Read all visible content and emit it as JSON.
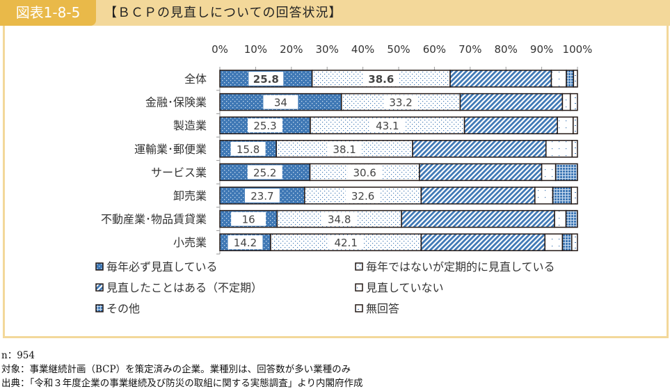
{
  "header": {
    "figure_number": "図表1-8-5",
    "title": "【ＢＣＰの見直しについての回答状況】"
  },
  "colors": {
    "header_bg": "#f3d89a",
    "figure_badge": "#e9b949",
    "bar_blue": "#3f78b5"
  },
  "chart_data": {
    "type": "bar",
    "orientation": "horizontal-stacked-100",
    "title": "【ＢＣＰの見直しについての回答状況】",
    "xlim": [
      0,
      100
    ],
    "x_ticks": [
      "0%",
      "10%",
      "20%",
      "30%",
      "40%",
      "50%",
      "60%",
      "70%",
      "80%",
      "90%",
      "100%"
    ],
    "categories": [
      "全体",
      "金融･保険業",
      "製造業",
      "運輸業･郵便業",
      "サービス業",
      "卸売業",
      "不動産業･物品賃貸業",
      "小売業"
    ],
    "series": [
      {
        "name": "毎年必ず見直している",
        "pattern": "blue-dots",
        "values": [
          25.8,
          34.0,
          25.3,
          15.8,
          25.2,
          23.7,
          16.0,
          14.2
        ],
        "labeled": true
      },
      {
        "name": "毎年ではないが定期的に見直している",
        "pattern": "white-dots",
        "values": [
          38.6,
          33.2,
          43.1,
          38.1,
          30.6,
          32.6,
          34.8,
          42.1
        ],
        "labeled": true
      },
      {
        "name": "見直したことはある（不定期）",
        "pattern": "blue-diagonal",
        "values": [
          28.3,
          28.6,
          26.0,
          37.3,
          34.2,
          31.8,
          42.8,
          34.6
        ]
      },
      {
        "name": "見直していない",
        "pattern": "white-sparse",
        "values": [
          4.2,
          2.2,
          4.4,
          7.3,
          3.9,
          5.0,
          3.2,
          4.9
        ]
      },
      {
        "name": "その他",
        "pattern": "blue-grid",
        "values": [
          2.0,
          0,
          0,
          0,
          6.1,
          5.2,
          3.2,
          2.6
        ]
      },
      {
        "name": "無回答",
        "pattern": "white-dash",
        "values": [
          1.1,
          2.0,
          1.2,
          1.5,
          0,
          1.7,
          0,
          1.6
        ]
      }
    ],
    "bold_row": "全体",
    "legend_position": "bottom"
  },
  "notes": {
    "n": "n：954",
    "target": "対象：事業継続計画（BCP）を策定済みの企業。業種別は、回答数が多い業種のみ",
    "source": "出典：「令和３年度企業の事業継続及び防災の取組に関する実態調査」より内閣府作成"
  }
}
